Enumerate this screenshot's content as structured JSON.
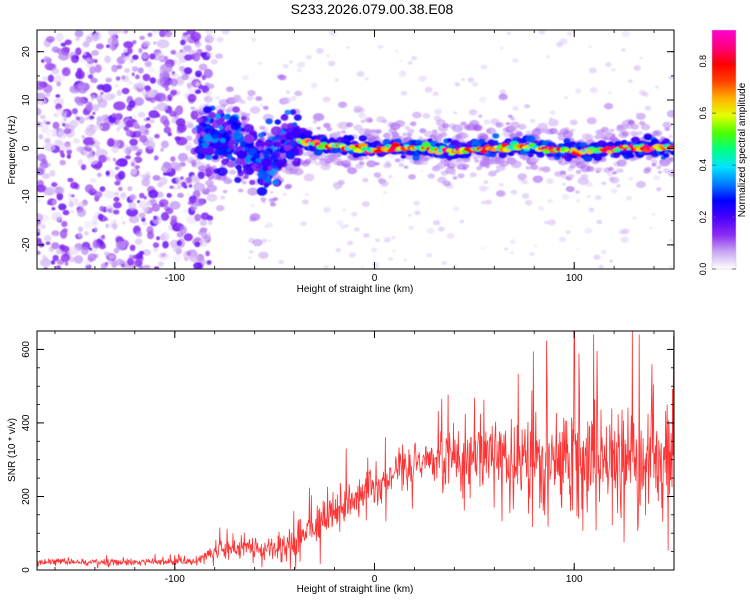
{
  "title": "S233.2026.079.00.38.E08",
  "chart_data": [
    {
      "type": "heatmap",
      "title": "S233.2026.079.00.38.E08",
      "xlabel": "Height of straight line (km)",
      "ylabel": "Frequency (Hz)",
      "xlim": [
        -169,
        150
      ],
      "ylim": [
        -25,
        24.5
      ],
      "xticks": [
        -100,
        0,
        100
      ],
      "yticks": [
        -20,
        -10,
        0,
        10,
        20
      ],
      "colorbar": {
        "label": "Normalized spectral amplitude",
        "range": [
          0,
          0.92
        ],
        "ticks": [
          0.0,
          0.2,
          0.4,
          0.6,
          0.8
        ],
        "colormap": [
          "#ffffff",
          "#c9a6f2",
          "#8b2cf0",
          "#4a00ff",
          "#0000ff",
          "#0080ff",
          "#00e5ff",
          "#00ff80",
          "#50ff00",
          "#e6ff00",
          "#ffb000",
          "#ff4000",
          "#ff0000",
          "#ff0080",
          "#ff00d0"
        ]
      },
      "regions": [
        {
          "name": "noise",
          "x_range": [
            -169,
            -88
          ],
          "freq_range": [
            -25,
            24.5
          ],
          "amplitude_range": [
            0.0,
            0.15
          ]
        },
        {
          "name": "transition",
          "x_range": [
            -88,
            -38
          ],
          "center_freq_hz": 0.5,
          "spread_hz": 6,
          "amplitude_range": [
            0.1,
            0.35
          ]
        },
        {
          "name": "carrier",
          "x_range": [
            -38,
            150
          ],
          "center_freq_hz": 0,
          "spread_hz": 2,
          "amplitude_range": [
            0.3,
            0.92
          ]
        }
      ],
      "carrier_path": {
        "x": [
          -88,
          -80,
          -70,
          -62,
          -55,
          -50,
          -45,
          -40,
          -35,
          -25,
          -10,
          0,
          10,
          25,
          40,
          55,
          70,
          85,
          100,
          115,
          130,
          150
        ],
        "freq_hz": [
          2,
          2.5,
          1.5,
          -1,
          -3,
          -2,
          1,
          2,
          1.5,
          0.5,
          0.3,
          -0.5,
          0.2,
          0,
          -0.6,
          -0.2,
          0.4,
          -0.1,
          -0.8,
          -0.4,
          0.2,
          0
        ]
      }
    },
    {
      "type": "line",
      "xlabel": "Height of straight line (km)",
      "ylabel": "SNR (10 * v/v)",
      "xlim": [
        -169,
        150
      ],
      "ylim": [
        0,
        650
      ],
      "xticks": [
        -100,
        0,
        100
      ],
      "yticks": [
        0,
        200,
        400,
        600
      ],
      "series": [
        {
          "name": "SNR",
          "color": "#ff3333",
          "envelope_x": [
            -169,
            -120,
            -90,
            -85,
            -75,
            -60,
            -50,
            -40,
            -30,
            -20,
            -10,
            0,
            10,
            20,
            30,
            40,
            60,
            80,
            100,
            120,
            150
          ],
          "envelope_mean": [
            22,
            22,
            24,
            40,
            60,
            60,
            55,
            70,
            120,
            160,
            200,
            230,
            260,
            290,
            300,
            305,
            305,
            300,
            300,
            300,
            300
          ],
          "envelope_spread": [
            8,
            8,
            10,
            20,
            30,
            30,
            30,
            40,
            50,
            60,
            60,
            60,
            60,
            60,
            70,
            80,
            100,
            120,
            140,
            140,
            130
          ],
          "peak_value": 650,
          "peak_x": 100
        }
      ]
    }
  ]
}
